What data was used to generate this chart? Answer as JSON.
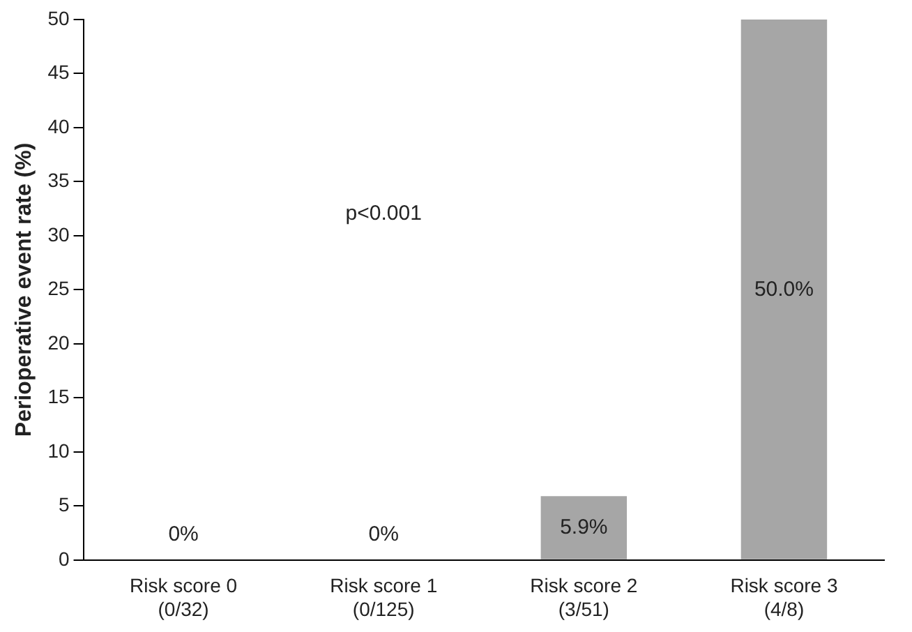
{
  "chart_data": {
    "type": "bar",
    "ylabel": "Perioperative event rate (%)",
    "categories": [
      "Risk score 0\n(0/32)",
      "Risk score 1\n(0/125)",
      "Risk score 2\n(3/51)",
      "Risk score 3\n(4/8)"
    ],
    "values": [
      0,
      0,
      5.9,
      50.0
    ],
    "value_labels": [
      "0%",
      "0%",
      "5.9%",
      "50.0%"
    ],
    "color": "#a6a6a6",
    "ylim": [
      0,
      50
    ],
    "yticks": [
      0,
      5,
      10,
      15,
      20,
      25,
      30,
      35,
      40,
      45,
      50
    ],
    "grid": false,
    "legend": false,
    "annotations": [
      "p<0.001"
    ]
  }
}
